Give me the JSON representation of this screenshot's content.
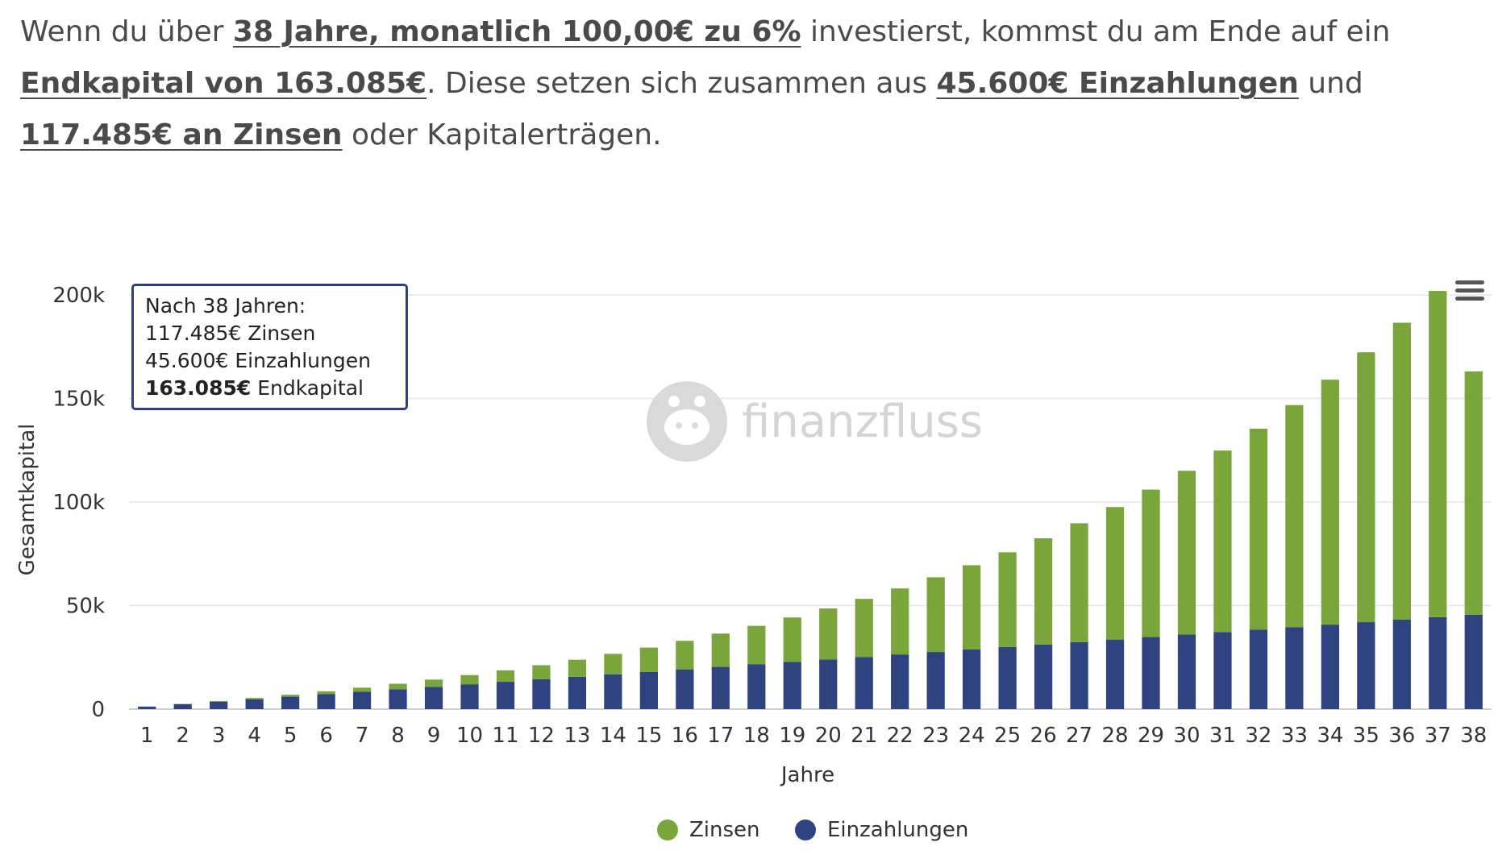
{
  "summary": {
    "p1": "Wenn du über ",
    "hl1": "38 Jahre, monatlich 100,00€ zu 6%",
    "p2": " investierst, kommst du am Ende auf ein ",
    "hl2": "Endkapital von 163.085€",
    "p3": ". Diese setzen sich zusammen aus ",
    "hl3": "45.600€ Einzahlungen",
    "p4": " und ",
    "hl4": "117.485€ an Zinsen",
    "p5": " oder Kapitalerträgen."
  },
  "watermark": {
    "text": "finanzfluss"
  },
  "tooltip": {
    "line1": "Nach 38 Jahren:",
    "line2": "117.485€ Zinsen",
    "line3": "45.600€ Einzahlungen",
    "line4_bold": "163.085€",
    "line4_rest": " Endkapital"
  },
  "menu": {
    "icon": "hamburger-menu-icon"
  },
  "colors": {
    "zinsen": "#7aa53a",
    "einzahlungen": "#2e437f",
    "grid": "#e6e6e6",
    "axis_text": "#333333"
  },
  "chart_data": {
    "type": "bar",
    "stacked": true,
    "xlabel": "Jahre",
    "ylabel": "Gesamtkapital",
    "ylim": [
      0,
      200000
    ],
    "yticks": [
      0,
      50000,
      100000,
      150000,
      200000
    ],
    "ytick_labels": [
      "0",
      "50k",
      "100k",
      "150k",
      "200k"
    ],
    "grid": true,
    "legend_position": "bottom-center",
    "categories": [
      "1",
      "2",
      "3",
      "4",
      "5",
      "6",
      "7",
      "8",
      "9",
      "10",
      "11",
      "12",
      "13",
      "14",
      "15",
      "16",
      "17",
      "18",
      "19",
      "20",
      "21",
      "22",
      "23",
      "24",
      "25",
      "26",
      "27",
      "28",
      "29",
      "30",
      "31",
      "32",
      "33",
      "34",
      "35",
      "36",
      "37",
      "38"
    ],
    "series": [
      {
        "name": "Zinsen",
        "values": [
          33,
          137,
          316,
          580,
          937,
          1396,
          1964,
          2652,
          3469,
          4425,
          5532,
          6800,
          8243,
          9876,
          11712,
          13770,
          16066,
          18619,
          21453,
          24589,
          28053,
          31870,
          36070,
          40683,
          45742,
          51283,
          57345,
          63969,
          71199,
          79084,
          87675,
          97027,
          107203,
          118267,
          130293,
          143360,
          157551,
          117485
        ]
      },
      {
        "name": "Einzahlungen",
        "values": [
          1200,
          2400,
          3600,
          4800,
          6000,
          7200,
          8400,
          9600,
          10800,
          12000,
          13200,
          14400,
          15600,
          16800,
          18000,
          19200,
          20400,
          21600,
          22800,
          24000,
          25200,
          26400,
          27600,
          28800,
          30000,
          31200,
          32400,
          33600,
          34800,
          36000,
          37200,
          38400,
          39600,
          40800,
          42000,
          43200,
          44400,
          45600
        ]
      }
    ]
  }
}
